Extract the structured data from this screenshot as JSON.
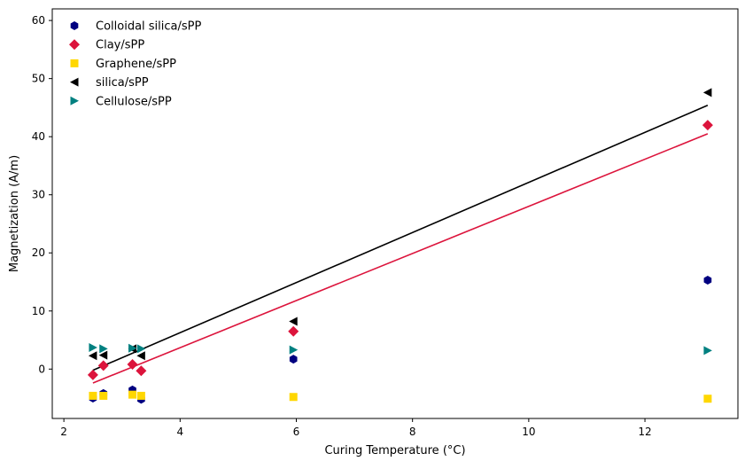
{
  "chart_data": {
    "type": "scatter",
    "title": "",
    "xlabel": "Curing Temperature (°C)",
    "ylabel": "Magnetization (A/m)",
    "xlim": [
      1.8,
      13.6
    ],
    "ylim": [
      -8.5,
      62
    ],
    "xticks": [
      2,
      4,
      6,
      8,
      10,
      12
    ],
    "yticks": [
      0,
      10,
      20,
      30,
      40,
      50,
      60
    ],
    "grid": false,
    "legend_position": "top-left",
    "series": [
      {
        "name": "Colloidal silica/sPP",
        "marker": "hexagon",
        "color": "#000080",
        "x": [
          2.5,
          2.68,
          3.18,
          3.33,
          5.95,
          13.08
        ],
        "y": [
          -5.0,
          -4.2,
          -3.6,
          -5.2,
          1.7,
          15.3
        ]
      },
      {
        "name": "Clay/sPP",
        "marker": "diamond",
        "color": "#dc143c",
        "x": [
          2.5,
          2.68,
          3.18,
          3.33,
          5.95,
          13.08
        ],
        "y": [
          -1.0,
          0.6,
          0.8,
          -0.3,
          6.5,
          42.0
        ]
      },
      {
        "name": "Graphene/sPP",
        "marker": "square",
        "color": "#ffd700",
        "x": [
          2.5,
          2.68,
          3.18,
          3.33,
          5.95,
          13.08
        ],
        "y": [
          -4.6,
          -4.6,
          -4.4,
          -4.6,
          -4.8,
          -5.1
        ]
      },
      {
        "name": "silica/sPP",
        "marker": "triangle-left",
        "color": "#000000",
        "x": [
          2.5,
          2.68,
          3.18,
          3.33,
          5.95,
          13.08
        ],
        "y": [
          2.3,
          2.4,
          3.5,
          2.3,
          8.2,
          47.6
        ]
      },
      {
        "name": "Cellulose/sPP",
        "marker": "triangle-right",
        "color": "#008080",
        "x": [
          2.5,
          2.68,
          3.18,
          3.33,
          5.95,
          13.08
        ],
        "y": [
          3.7,
          3.5,
          3.6,
          3.5,
          3.3,
          3.2
        ]
      }
    ],
    "trend_lines": [
      {
        "series": "silica/sPP",
        "color": "#000000",
        "x": [
          2.5,
          13.08
        ],
        "y": [
          -0.2,
          45.4
        ]
      },
      {
        "series": "Clay/sPP",
        "color": "#dc143c",
        "x": [
          2.5,
          13.08
        ],
        "y": [
          -2.4,
          40.5
        ]
      }
    ]
  }
}
